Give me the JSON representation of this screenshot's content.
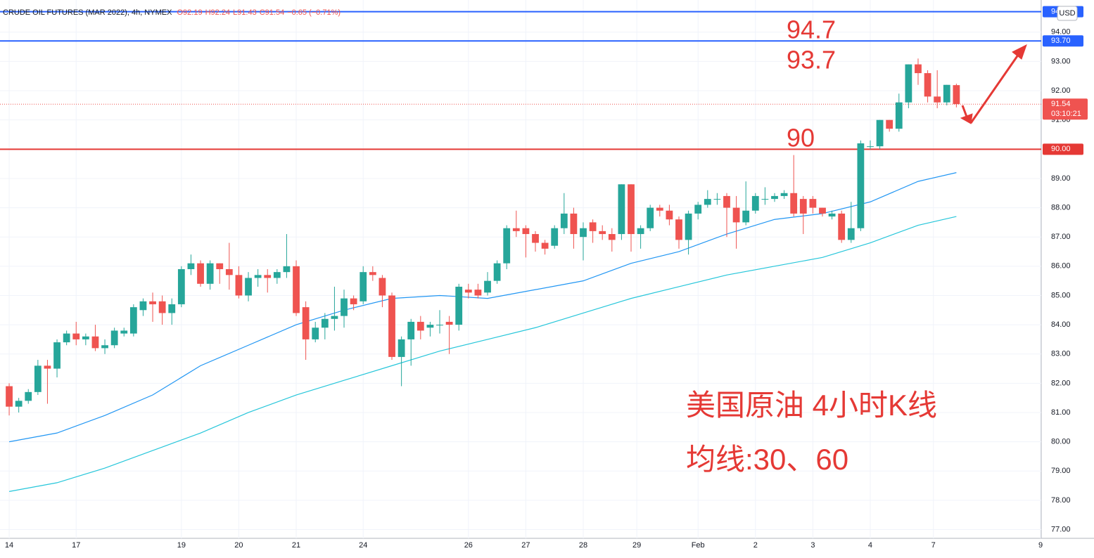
{
  "chart_data": {
    "type": "candlestick",
    "title": "CRUDE OIL FUTURES (MAR 2022), 4h, NYMEX",
    "ohlc_legend": [
      "O92.19",
      "H92.24",
      "L91.43",
      "C91.54",
      "−0.65 (−0.71%)"
    ],
    "currency": "USD",
    "up_color": "#26a69a",
    "down_color": "#ef5350",
    "grid": true,
    "x": [
      0,
      1,
      2,
      3,
      4,
      5,
      6,
      7,
      8,
      9,
      10,
      11,
      12,
      13,
      14,
      15,
      16,
      17,
      18,
      19,
      20,
      21,
      22,
      23,
      24,
      25,
      26,
      27,
      28,
      29,
      30,
      31,
      32,
      33,
      34,
      35,
      36,
      37,
      38,
      39,
      40,
      41,
      42,
      43,
      44,
      45,
      46,
      47,
      48,
      49,
      50,
      51,
      52,
      53,
      54,
      55,
      56,
      57,
      58,
      59,
      60,
      61,
      62,
      63,
      64,
      65,
      66,
      67,
      68,
      69,
      70,
      71,
      72,
      73,
      74,
      75,
      76,
      77,
      78,
      79,
      80,
      81,
      82,
      83,
      84,
      85,
      86,
      87,
      88,
      89,
      90,
      91,
      92,
      93,
      94,
      95,
      96,
      97,
      98,
      99
    ],
    "open": [
      81.9,
      81.2,
      81.4,
      81.7,
      82.6,
      82.5,
      83.4,
      83.7,
      83.5,
      83.6,
      83.2,
      83.3,
      83.7,
      83.7,
      84.5,
      84.8,
      84.8,
      84.4,
      84.7,
      85.9,
      86.1,
      85.4,
      86.1,
      85.9,
      85.7,
      85.0,
      85.6,
      85.7,
      85.6,
      85.8,
      86.0,
      84.6,
      83.5,
      83.9,
      84.2,
      84.3,
      84.9,
      84.8,
      85.8,
      85.6,
      85.0,
      82.9,
      83.5,
      84.1,
      83.9,
      84.0,
      84.1,
      84.0,
      85.2,
      85.2,
      85.1,
      85.5,
      86.1,
      87.3,
      87.3,
      87.1,
      86.8,
      86.7,
      87.3,
      87.8,
      87.0,
      87.5,
      87.2,
      87.1,
      87.1,
      88.8,
      87.1,
      87.3,
      88.0,
      87.9,
      87.6,
      86.9,
      87.8,
      88.1,
      88.3,
      88.4,
      88.0,
      87.5,
      87.9,
      88.3,
      88.3,
      88.4,
      88.5,
      88.3,
      88.3,
      88.0,
      87.7,
      87.8,
      86.9,
      87.3,
      90.1,
      90.1,
      91.0,
      90.7,
      91.6,
      92.9,
      92.6,
      91.8,
      91.6,
      92.19
    ],
    "high": [
      82.0,
      81.5,
      81.8,
      82.8,
      82.8,
      83.5,
      83.8,
      84.1,
      83.7,
      84.0,
      83.5,
      83.9,
      83.9,
      84.7,
      84.9,
      85.1,
      85.0,
      84.9,
      86.0,
      86.4,
      86.2,
      86.2,
      86.1,
      86.8,
      86.0,
      85.8,
      85.9,
      85.9,
      85.9,
      87.1,
      86.2,
      84.8,
      84.1,
      84.4,
      85.3,
      85.2,
      85.0,
      86.0,
      86.0,
      85.7,
      85.1,
      83.6,
      84.2,
      84.3,
      84.1,
      84.5,
      84.3,
      85.4,
      85.4,
      85.4,
      85.8,
      86.2,
      87.4,
      87.9,
      87.4,
      87.2,
      86.9,
      87.4,
      88.5,
      88.0,
      87.5,
      87.6,
      87.4,
      87.3,
      88.8,
      88.8,
      87.4,
      88.1,
      88.1,
      88.1,
      87.7,
      87.9,
      88.2,
      88.6,
      88.5,
      88.5,
      88.4,
      88.9,
      88.5,
      88.7,
      88.5,
      88.6,
      89.8,
      88.4,
      88.4,
      88.0,
      87.9,
      87.9,
      88.2,
      90.3,
      90.3,
      91.0,
      91.0,
      91.9,
      92.9,
      93.1,
      92.7,
      92.7,
      92.2,
      92.24
    ],
    "low": [
      80.9,
      81.0,
      81.3,
      81.6,
      81.3,
      82.2,
      83.3,
      83.3,
      83.3,
      83.1,
      83.0,
      83.2,
      83.6,
      83.6,
      84.3,
      84.1,
      84.0,
      84.0,
      84.6,
      85.7,
      85.3,
      85.2,
      85.4,
      85.2,
      84.9,
      84.8,
      85.3,
      85.1,
      85.4,
      85.6,
      84.3,
      82.8,
      83.4,
      83.5,
      83.8,
      83.9,
      84.5,
      84.7,
      85.5,
      84.6,
      82.8,
      81.9,
      82.6,
      83.5,
      83.6,
      83.7,
      83.0,
      83.8,
      84.9,
      84.9,
      85.0,
      85.4,
      85.9,
      87.0,
      86.3,
      86.5,
      86.4,
      86.6,
      87.1,
      86.6,
      86.2,
      86.8,
      86.9,
      86.5,
      86.9,
      86.5,
      86.6,
      87.2,
      87.7,
      87.4,
      86.6,
      86.4,
      87.6,
      88.0,
      88.1,
      87.0,
      86.6,
      87.4,
      87.8,
      88.1,
      88.2,
      88.3,
      87.7,
      87.1,
      87.8,
      87.7,
      87.6,
      86.8,
      86.8,
      87.2,
      90.0,
      90.0,
      90.6,
      90.6,
      91.4,
      92.2,
      91.6,
      91.4,
      91.5,
      91.43
    ],
    "close": [
      81.2,
      81.4,
      81.7,
      82.6,
      82.5,
      83.4,
      83.7,
      83.5,
      83.6,
      83.2,
      83.3,
      83.8,
      83.8,
      84.6,
      84.8,
      84.7,
      84.4,
      84.7,
      85.9,
      86.1,
      85.4,
      86.1,
      85.9,
      85.7,
      85.0,
      85.6,
      85.7,
      85.6,
      85.8,
      86.0,
      84.4,
      83.5,
      83.9,
      84.2,
      84.3,
      84.9,
      84.7,
      85.8,
      85.7,
      85.0,
      82.9,
      83.5,
      84.1,
      83.8,
      84.0,
      84.0,
      84.0,
      85.3,
      85.1,
      85.0,
      85.5,
      86.1,
      87.3,
      87.2,
      87.1,
      86.8,
      86.6,
      87.3,
      87.8,
      87.1,
      87.3,
      87.2,
      87.1,
      86.9,
      88.8,
      87.1,
      87.3,
      88.0,
      87.9,
      87.6,
      86.9,
      87.8,
      88.1,
      88.3,
      88.3,
      88.0,
      87.5,
      87.9,
      88.4,
      88.3,
      88.4,
      88.5,
      87.8,
      87.8,
      88.0,
      87.8,
      87.8,
      86.9,
      87.3,
      90.2,
      90.1,
      91.0,
      90.7,
      91.6,
      92.9,
      92.6,
      91.8,
      91.6,
      92.2,
      91.54
    ],
    "ma": [
      {
        "color": "#2196f3",
        "x": [
          0,
          5,
          10,
          15,
          20,
          25,
          30,
          35,
          40,
          45,
          50,
          55,
          60,
          65,
          70,
          75,
          80,
          85,
          90,
          95,
          99
        ],
        "values": [
          80.0,
          80.3,
          80.9,
          81.6,
          82.6,
          83.3,
          84.0,
          84.5,
          84.9,
          85.0,
          84.9,
          85.2,
          85.5,
          86.1,
          86.5,
          87.1,
          87.6,
          87.8,
          88.2,
          88.9,
          89.2
        ]
      },
      {
        "color": "#26c6da",
        "x": [
          0,
          5,
          10,
          15,
          20,
          25,
          30,
          35,
          40,
          45,
          50,
          55,
          60,
          65,
          70,
          75,
          80,
          85,
          90,
          95,
          99
        ],
        "values": [
          78.3,
          78.6,
          79.1,
          79.7,
          80.3,
          81.0,
          81.6,
          82.1,
          82.6,
          83.1,
          83.5,
          83.9,
          84.4,
          84.9,
          85.3,
          85.7,
          86.0,
          86.3,
          86.8,
          87.4,
          87.7
        ]
      }
    ],
    "levels": [
      {
        "value": 94.7,
        "label": "94.70",
        "color": "#2962ff"
      },
      {
        "value": 93.7,
        "label": "93.70",
        "color": "#2962ff"
      },
      {
        "value": 90,
        "label": "90.00",
        "color": "#e53935"
      }
    ],
    "last_price": {
      "value": 91.54,
      "label": "91.54",
      "countdown": "03:10:21",
      "color": "#ef5350"
    },
    "annotations": [
      "94.7",
      "93.7",
      "90",
      "美国原油 4小时K线",
      "均线:30、60"
    ],
    "xlim": [
      -0.96,
      107.87
    ],
    "xticks": [
      {
        "value": 0,
        "label": "14"
      },
      {
        "value": 7,
        "label": "17"
      },
      {
        "value": 18,
        "label": "19"
      },
      {
        "value": 24,
        "label": "20"
      },
      {
        "value": 30,
        "label": "21"
      },
      {
        "value": 37,
        "label": "24"
      },
      {
        "value": 48,
        "label": "26"
      },
      {
        "value": 54,
        "label": "27"
      },
      {
        "value": 60,
        "label": "28"
      },
      {
        "value": 65.6,
        "label": "29"
      },
      {
        "value": 72,
        "label": "Feb"
      },
      {
        "value": 78,
        "label": "2"
      },
      {
        "value": 84,
        "label": "3"
      },
      {
        "value": 90,
        "label": "4"
      },
      {
        "value": 96.6,
        "label": "7"
      },
      {
        "value": 107.8,
        "label": "9"
      }
    ],
    "ylim": [
      76.7,
      95.1
    ],
    "yticks": [
      {
        "value": 77,
        "label": "77.00"
      },
      {
        "value": 78,
        "label": "78.00"
      },
      {
        "value": 79,
        "label": "79.00"
      },
      {
        "value": 80,
        "label": "80.00"
      },
      {
        "value": 81,
        "label": "81.00"
      },
      {
        "value": 82,
        "label": "82.00"
      },
      {
        "value": 83,
        "label": "83.00"
      },
      {
        "value": 84,
        "label": "84.00"
      },
      {
        "value": 85,
        "label": "85.00"
      },
      {
        "value": 86,
        "label": "86.00"
      },
      {
        "value": 87,
        "label": "87.00"
      },
      {
        "value": 88,
        "label": "88.00"
      },
      {
        "value": 89,
        "label": "89.00"
      },
      {
        "value": 90,
        "label": "90.00"
      },
      {
        "value": 91,
        "label": "91.00"
      },
      {
        "value": 92,
        "label": "92.00"
      },
      {
        "value": 93,
        "label": "93.00"
      },
      {
        "value": 94,
        "label": "94.00"
      }
    ]
  }
}
